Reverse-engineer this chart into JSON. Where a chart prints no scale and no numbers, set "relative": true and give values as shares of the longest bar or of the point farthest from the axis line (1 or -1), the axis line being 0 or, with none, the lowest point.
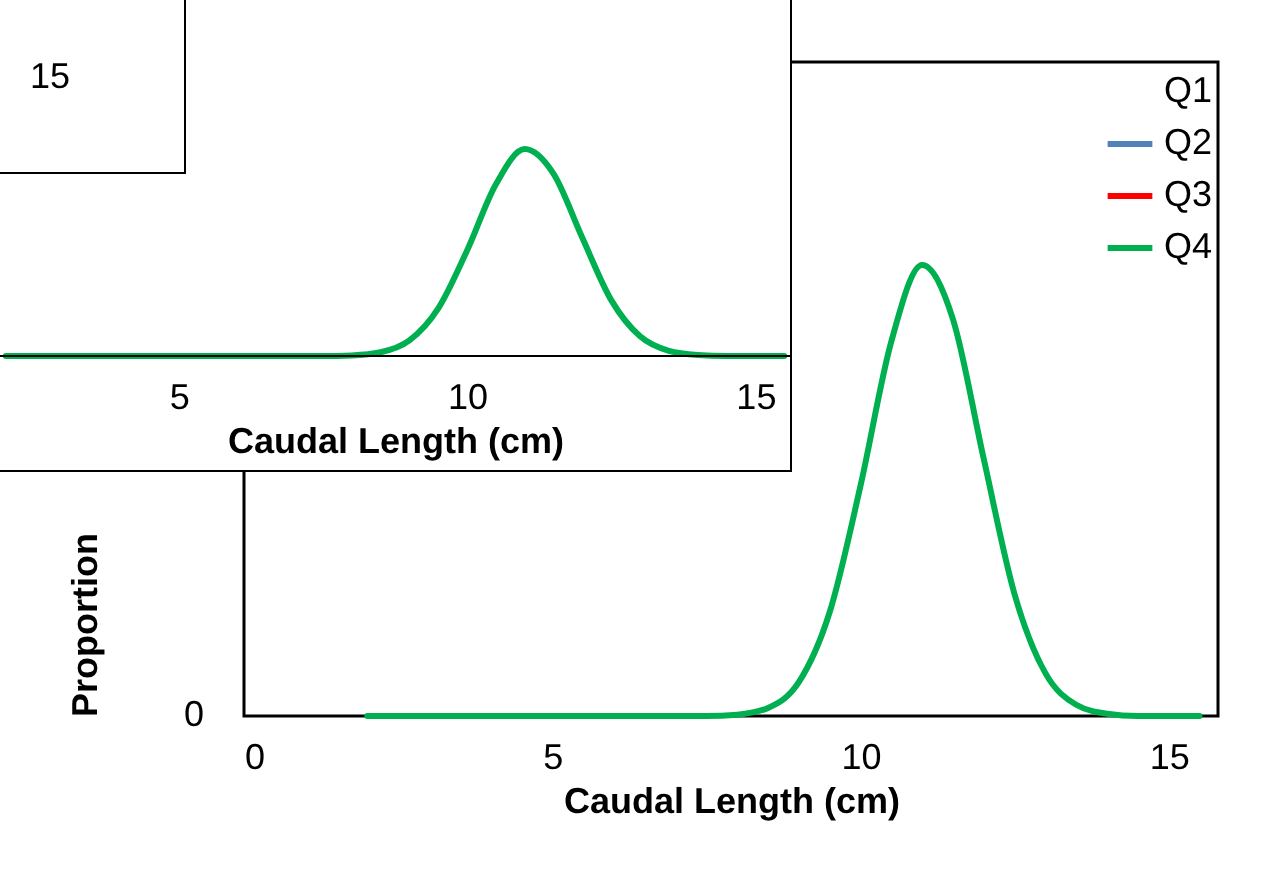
{
  "chart_data": [
    {
      "type": "line",
      "xlabel": "Caudal Length (cm)",
      "ylabel": "Proportion",
      "relative": true,
      "xlim": [
        0,
        15.8
      ],
      "xticks": [
        0,
        5,
        10,
        15
      ],
      "legend": "top right",
      "annotations": [
        "0"
      ],
      "x": [
        2,
        3,
        4,
        5,
        6,
        7,
        7.5,
        8,
        8.5,
        9,
        9.5,
        10,
        10.5,
        11,
        11.5,
        12,
        12.5,
        13,
        13.5,
        14,
        14.5,
        15,
        15.5
      ],
      "series": [
        {
          "name": "Q1",
          "values": [
            null,
            null,
            null,
            null,
            null,
            null,
            null,
            null,
            null,
            null,
            null,
            null,
            null,
            null,
            null,
            null,
            null,
            null,
            null,
            null,
            null,
            null,
            null
          ]
        },
        {
          "name": "Q2",
          "color": "#4f81bd",
          "values": [
            null,
            null,
            null,
            null,
            null,
            null,
            null,
            null,
            null,
            null,
            null,
            null,
            null,
            null,
            null,
            null,
            null,
            null,
            null,
            null,
            null,
            null,
            null
          ]
        },
        {
          "name": "Q3",
          "color": "#ff0000",
          "values": [
            null,
            null,
            null,
            null,
            null,
            null,
            null,
            null,
            null,
            null,
            null,
            null,
            null,
            null,
            null,
            null,
            null,
            null,
            null,
            null,
            null,
            null,
            null
          ]
        },
        {
          "name": "Q4",
          "color": "#00b050",
          "values": [
            0,
            0,
            0,
            0,
            0,
            0,
            0,
            0.003,
            0.018,
            0.075,
            0.23,
            0.51,
            0.83,
            1,
            0.88,
            0.57,
            0.27,
            0.095,
            0.025,
            0.005,
            0,
            0,
            0
          ]
        }
      ]
    },
    {
      "type": "line",
      "xlabel": "Caudal Length (cm)",
      "relative": true,
      "xlim": [
        1.9,
        15.6
      ],
      "xticks": [
        5,
        10,
        15
      ],
      "x": [
        2,
        3,
        4,
        5,
        6,
        7,
        7.5,
        8,
        8.5,
        9,
        9.5,
        10,
        10.5,
        11,
        11.5,
        12,
        12.5,
        13,
        13.5,
        14,
        14.5,
        15,
        15.5
      ],
      "series": [
        {
          "color": "#00b050",
          "values": [
            0,
            0,
            0,
            0,
            0,
            0,
            0,
            0.003,
            0.018,
            0.075,
            0.23,
            0.51,
            0.83,
            1,
            0.88,
            0.57,
            0.27,
            0.095,
            0.025,
            0.005,
            0,
            0,
            0
          ]
        }
      ]
    },
    {
      "type": "other",
      "annotations": [
        "15"
      ]
    }
  ]
}
